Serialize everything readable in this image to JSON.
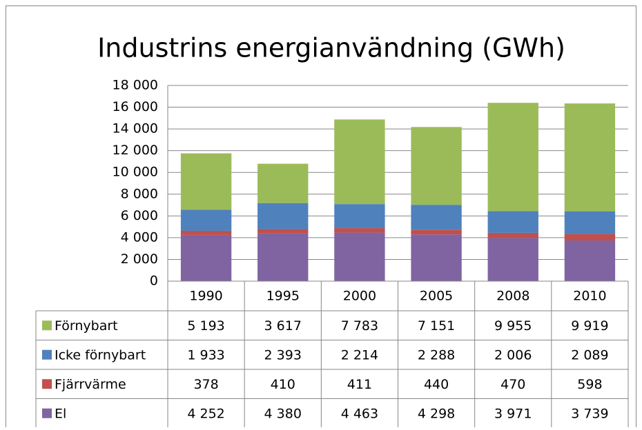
{
  "chart_data": {
    "type": "stacked_bar",
    "title": "Industrins energianvändning (GWh)",
    "categories": [
      "1990",
      "1995",
      "2000",
      "2005",
      "2008",
      "2010"
    ],
    "series": [
      {
        "name": "Förnybart",
        "color": "#9bbb59",
        "values": [
          5193,
          3617,
          7783,
          7151,
          9955,
          9919
        ],
        "value_labels": [
          "5 193",
          "3 617",
          "7 783",
          "7 151",
          "9 955",
          "9 919"
        ]
      },
      {
        "name": "Icke förnybart",
        "color": "#4f81bd",
        "values": [
          1933,
          2393,
          2214,
          2288,
          2006,
          2089
        ],
        "value_labels": [
          "1 933",
          "2 393",
          "2 214",
          "2 288",
          "2 006",
          "2 089"
        ]
      },
      {
        "name": "Fjärrvärme",
        "color": "#c0504d",
        "values": [
          378,
          410,
          411,
          440,
          470,
          598
        ]
      },
      {
        "name": "El",
        "color": "#8064a2",
        "values": [
          4252,
          4380,
          4463,
          4298,
          3971,
          3739
        ],
        "value_labels": [
          "4 252",
          "4 380",
          "4 463",
          "4 298",
          "3 971",
          "3 739"
        ]
      }
    ],
    "ylim": [
      0,
      18000
    ],
    "yticks": [
      0,
      {
        "value": 2000,
        "label": "2 000"
      },
      {
        "value": 4000,
        "label": "4 000"
      },
      {
        "value": 6000,
        "label": "6 000"
      },
      {
        "value": 8000,
        "label": "8 000"
      },
      {
        "value": 10000,
        "label": "10 000"
      },
      {
        "value": 12000,
        "label": "12 000"
      },
      {
        "value": 14000,
        "label": "14 000"
      },
      {
        "value": 16000,
        "label": "16 000"
      },
      {
        "value": 18000,
        "label": "18 000"
      }
    ],
    "grid": true
  }
}
